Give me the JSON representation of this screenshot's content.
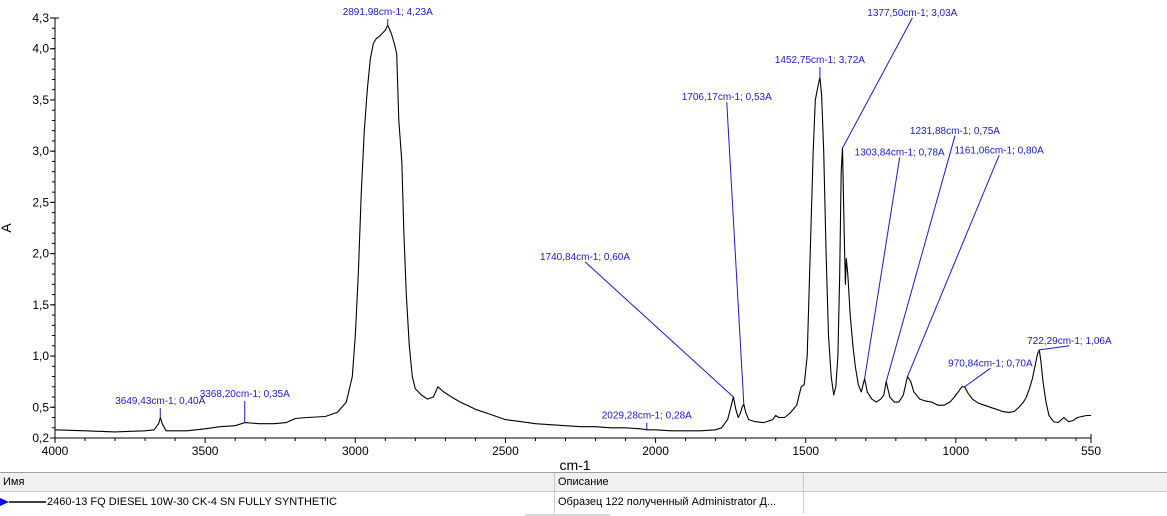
{
  "chart_data": {
    "type": "line",
    "xlabel": "cm-1",
    "ylabel": "A",
    "xlim": [
      4000,
      550
    ],
    "ylim": [
      0.2,
      4.3
    ],
    "x_reversed": true,
    "x_ticks": [
      4000,
      3500,
      3000,
      2500,
      2000,
      1500,
      1000,
      550
    ],
    "x_tick_labels": [
      "4000",
      "3500",
      "3000",
      "2500",
      "2000",
      "1500",
      "1000",
      "550"
    ],
    "y_ticks": [
      0.2,
      0.5,
      1.0,
      1.5,
      2.0,
      2.5,
      3.0,
      3.5,
      4.0,
      4.3
    ],
    "y_tick_labels": [
      "0,2",
      "0,5",
      "1,0",
      "1,5",
      "2,0",
      "2,5",
      "3,0",
      "3,5",
      "4,0",
      "4,3"
    ],
    "series": [
      {
        "color": "#000000",
        "points": [
          [
            4000,
            0.28
          ],
          [
            3900,
            0.27
          ],
          [
            3800,
            0.26
          ],
          [
            3700,
            0.27
          ],
          [
            3670,
            0.28
          ],
          [
            3655,
            0.34
          ],
          [
            3649,
            0.4
          ],
          [
            3643,
            0.34
          ],
          [
            3630,
            0.27
          ],
          [
            3560,
            0.27
          ],
          [
            3500,
            0.29
          ],
          [
            3450,
            0.31
          ],
          [
            3400,
            0.32
          ],
          [
            3368,
            0.35
          ],
          [
            3320,
            0.34
          ],
          [
            3270,
            0.34
          ],
          [
            3230,
            0.35
          ],
          [
            3200,
            0.39
          ],
          [
            3160,
            0.4
          ],
          [
            3100,
            0.41
          ],
          [
            3060,
            0.45
          ],
          [
            3030,
            0.55
          ],
          [
            3010,
            0.8
          ],
          [
            3000,
            1.2
          ],
          [
            2990,
            1.8
          ],
          [
            2980,
            2.6
          ],
          [
            2970,
            3.2
          ],
          [
            2960,
            3.6
          ],
          [
            2950,
            3.9
          ],
          [
            2940,
            4.05
          ],
          [
            2930,
            4.1
          ],
          [
            2920,
            4.12
          ],
          [
            2910,
            4.15
          ],
          [
            2900,
            4.18
          ],
          [
            2891.98,
            4.23
          ],
          [
            2880,
            4.15
          ],
          [
            2870,
            4.05
          ],
          [
            2862,
            3.95
          ],
          [
            2855,
            3.3
          ],
          [
            2852,
            3.18
          ],
          [
            2845,
            2.9
          ],
          [
            2838,
            2.2
          ],
          [
            2830,
            1.6
          ],
          [
            2820,
            1.1
          ],
          [
            2810,
            0.8
          ],
          [
            2800,
            0.68
          ],
          [
            2780,
            0.62
          ],
          [
            2760,
            0.58
          ],
          [
            2740,
            0.6
          ],
          [
            2725,
            0.7
          ],
          [
            2710,
            0.66
          ],
          [
            2680,
            0.6
          ],
          [
            2650,
            0.55
          ],
          [
            2600,
            0.48
          ],
          [
            2550,
            0.43
          ],
          [
            2500,
            0.38
          ],
          [
            2450,
            0.36
          ],
          [
            2400,
            0.34
          ],
          [
            2350,
            0.33
          ],
          [
            2300,
            0.32
          ],
          [
            2250,
            0.31
          ],
          [
            2200,
            0.31
          ],
          [
            2150,
            0.3
          ],
          [
            2100,
            0.3
          ],
          [
            2050,
            0.29
          ],
          [
            2029.28,
            0.28
          ],
          [
            2000,
            0.28
          ],
          [
            1950,
            0.27
          ],
          [
            1900,
            0.27
          ],
          [
            1850,
            0.27
          ],
          [
            1800,
            0.28
          ],
          [
            1780,
            0.3
          ],
          [
            1760,
            0.38
          ],
          [
            1748,
            0.52
          ],
          [
            1740.84,
            0.6
          ],
          [
            1733,
            0.48
          ],
          [
            1725,
            0.4
          ],
          [
            1718,
            0.44
          ],
          [
            1712,
            0.5
          ],
          [
            1706.17,
            0.53
          ],
          [
            1700,
            0.45
          ],
          [
            1690,
            0.38
          ],
          [
            1670,
            0.36
          ],
          [
            1640,
            0.35
          ],
          [
            1610,
            0.38
          ],
          [
            1600,
            0.42
          ],
          [
            1590,
            0.4
          ],
          [
            1570,
            0.4
          ],
          [
            1550,
            0.45
          ],
          [
            1530,
            0.52
          ],
          [
            1515,
            0.7
          ],
          [
            1505,
            0.72
          ],
          [
            1495,
            1.0
          ],
          [
            1485,
            2.0
          ],
          [
            1475,
            3.0
          ],
          [
            1468,
            3.5
          ],
          [
            1460,
            3.62
          ],
          [
            1452.75,
            3.72
          ],
          [
            1447,
            3.55
          ],
          [
            1440,
            3.0
          ],
          [
            1432,
            2.0
          ],
          [
            1424,
            1.2
          ],
          [
            1415,
            0.8
          ],
          [
            1407,
            0.62
          ],
          [
            1400,
            0.7
          ],
          [
            1393,
            1.0
          ],
          [
            1387,
            1.8
          ],
          [
            1382,
            2.8
          ],
          [
            1377.5,
            3.03
          ],
          [
            1372,
            2.2
          ],
          [
            1368,
            1.7
          ],
          [
            1365,
            1.95
          ],
          [
            1360,
            1.8
          ],
          [
            1352,
            1.4
          ],
          [
            1343,
            1.1
          ],
          [
            1335,
            0.9
          ],
          [
            1325,
            0.72
          ],
          [
            1315,
            0.65
          ],
          [
            1303.84,
            0.78
          ],
          [
            1295,
            0.65
          ],
          [
            1280,
            0.58
          ],
          [
            1265,
            0.55
          ],
          [
            1250,
            0.58
          ],
          [
            1240,
            0.62
          ],
          [
            1231.88,
            0.75
          ],
          [
            1220,
            0.6
          ],
          [
            1205,
            0.55
          ],
          [
            1190,
            0.55
          ],
          [
            1175,
            0.62
          ],
          [
            1161.06,
            0.8
          ],
          [
            1150,
            0.75
          ],
          [
            1140,
            0.65
          ],
          [
            1120,
            0.58
          ],
          [
            1100,
            0.56
          ],
          [
            1080,
            0.55
          ],
          [
            1060,
            0.52
          ],
          [
            1040,
            0.52
          ],
          [
            1020,
            0.55
          ],
          [
            1005,
            0.6
          ],
          [
            990,
            0.66
          ],
          [
            980,
            0.7
          ],
          [
            970.84,
            0.7
          ],
          [
            960,
            0.64
          ],
          [
            945,
            0.58
          ],
          [
            925,
            0.54
          ],
          [
            905,
            0.52
          ],
          [
            885,
            0.5
          ],
          [
            865,
            0.48
          ],
          [
            845,
            0.46
          ],
          [
            825,
            0.45
          ],
          [
            805,
            0.46
          ],
          [
            790,
            0.5
          ],
          [
            775,
            0.55
          ],
          [
            765,
            0.6
          ],
          [
            755,
            0.68
          ],
          [
            745,
            0.78
          ],
          [
            735,
            0.92
          ],
          [
            728,
            1.02
          ],
          [
            722.29,
            1.06
          ],
          [
            717,
            0.95
          ],
          [
            710,
            0.75
          ],
          [
            700,
            0.55
          ],
          [
            690,
            0.42
          ],
          [
            675,
            0.36
          ],
          [
            660,
            0.35
          ],
          [
            640,
            0.4
          ],
          [
            625,
            0.36
          ],
          [
            610,
            0.37
          ],
          [
            595,
            0.4
          ],
          [
            580,
            0.41
          ],
          [
            565,
            0.42
          ],
          [
            550,
            0.42
          ]
        ]
      }
    ],
    "annotations": [
      {
        "text": "2891,98cm-1; 4,23A",
        "peak": [
          2891.98,
          4.23
        ],
        "label_at": [
          2891.98,
          4.31
        ]
      },
      {
        "text": "3649,43cm-1; 0,40A",
        "peak": [
          3649.43,
          0.4
        ],
        "label_at": [
          3649.43,
          0.51
        ]
      },
      {
        "text": "3368,20cm-1; 0,35A",
        "peak": [
          3368.2,
          0.35
        ],
        "label_at": [
          3368.2,
          0.58
        ]
      },
      {
        "text": "2029,28cm-1; 0,28A",
        "peak": [
          2029.28,
          0.28
        ],
        "label_at": [
          2029.28,
          0.37
        ]
      },
      {
        "text": "1740,84cm-1; 0,60A",
        "peak": [
          1740.84,
          0.6
        ],
        "label_at": [
          2235,
          1.92
        ]
      },
      {
        "text": "1706,17cm-1; 0,53A",
        "peak": [
          1706.17,
          0.53
        ],
        "label_at": [
          1763,
          3.48
        ]
      },
      {
        "text": "1452,75cm-1; 3,72A",
        "peak": [
          1452.75,
          3.72
        ],
        "label_at": [
          1452.75,
          3.84
        ]
      },
      {
        "text": "1377,50cm-1; 3,03A",
        "peak": [
          1377.5,
          3.03
        ],
        "label_at": [
          1145,
          4.3
        ]
      },
      {
        "text": "1303,84cm-1; 0,78A",
        "peak": [
          1303.84,
          0.78
        ],
        "label_at": [
          1187,
          2.94
        ]
      },
      {
        "text": "1231,88cm-1; 0,75A",
        "peak": [
          1231.88,
          0.75
        ],
        "label_at": [
          1003,
          3.15
        ]
      },
      {
        "text": "1161,06cm-1; 0,80A",
        "peak": [
          1161.06,
          0.8
        ],
        "label_at": [
          856,
          2.96
        ]
      },
      {
        "text": "970,84cm-1; 0,70A",
        "peak": [
          970.84,
          0.7
        ],
        "label_at": [
          885,
          0.88
        ]
      },
      {
        "text": "722,29cm-1; 1,06A",
        "peak": [
          722.29,
          1.06
        ],
        "label_at": [
          622,
          1.1
        ]
      }
    ],
    "grid": false,
    "annotation_color": "#1a1acc"
  },
  "legend_table": {
    "header_name": "Имя",
    "header_description": "Описание",
    "row_name": "2460-13 FQ DIESEL 10W-30 CK-4 SN FULLY SYNTHETIC",
    "row_description": "Образец 122 полученный Administrator Д...",
    "marker_color": "#0000ff"
  }
}
